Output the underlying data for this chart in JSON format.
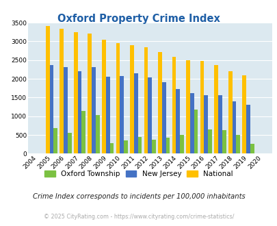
{
  "title": "Oxford Property Crime Index",
  "years": [
    2004,
    2005,
    2006,
    2007,
    2008,
    2009,
    2010,
    2011,
    2012,
    2013,
    2014,
    2015,
    2016,
    2017,
    2018,
    2019,
    2020
  ],
  "oxford": [
    0,
    680,
    560,
    1150,
    1040,
    290,
    360,
    450,
    370,
    430,
    510,
    1180,
    650,
    620,
    510,
    260,
    0
  ],
  "nj": [
    0,
    2360,
    2310,
    2200,
    2320,
    2060,
    2065,
    2150,
    2040,
    1905,
    1720,
    1620,
    1560,
    1560,
    1400,
    1310,
    0
  ],
  "national": [
    0,
    3410,
    3330,
    3250,
    3200,
    3040,
    2950,
    2900,
    2850,
    2720,
    2580,
    2490,
    2470,
    2360,
    2200,
    2100,
    0
  ],
  "oxford_color": "#7bc142",
  "nj_color": "#4472c4",
  "national_color": "#ffc000",
  "bg_color": "#dce9f0",
  "title_color": "#1f5fa6",
  "ylim": [
    0,
    3500
  ],
  "yticks": [
    0,
    500,
    1000,
    1500,
    2000,
    2500,
    3000,
    3500
  ],
  "annotation": "Crime Index corresponds to incidents per 100,000 inhabitants",
  "copyright": "© 2025 CityRating.com - https://www.cityrating.com/crime-statistics/",
  "legend_labels": [
    "Oxford Township",
    "New Jersey",
    "National"
  ]
}
